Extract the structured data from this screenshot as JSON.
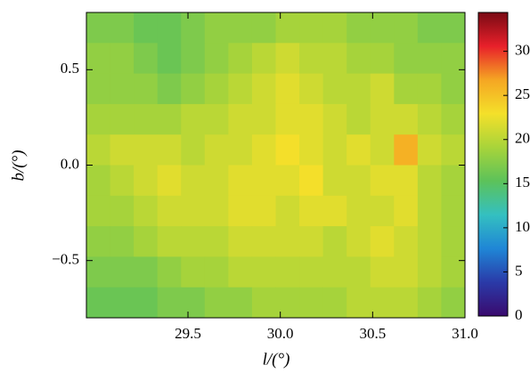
{
  "chart_data": {
    "type": "heatmap",
    "x_label": "l/(°)",
    "y_label": "b/(°)",
    "xlim": [
      28.95,
      31.0
    ],
    "ylim": [
      -0.8,
      0.8
    ],
    "xticks": [
      29.5,
      {
        "value": 30,
        "label": "30.0"
      },
      30.5,
      {
        "value": 31,
        "label": "31.0"
      }
    ],
    "yticks": [
      {
        "value": -0.5,
        "label": "−0.5"
      },
      {
        "value": 0,
        "label": "0.0"
      },
      0.5
    ],
    "clim": [
      0,
      34.4
    ],
    "cticks": [
      0,
      5,
      10,
      15,
      20,
      25,
      30
    ],
    "colormap": [
      "#3a0a6e",
      "#2a3aa8",
      "#1f86d6",
      "#34c0c0",
      "#5cc25a",
      "#a8d43a",
      "#f4e02a",
      "#f5a623",
      "#e8202a",
      "#7a0a14"
    ],
    "z": [
      [
        17,
        17,
        16,
        16,
        17,
        18,
        18,
        18,
        19,
        19,
        19,
        18,
        18,
        18,
        17,
        17
      ],
      [
        18,
        18,
        17,
        16,
        17,
        18,
        19,
        20,
        21,
        20,
        20,
        19,
        19,
        18,
        18,
        18
      ],
      [
        18,
        18,
        18,
        17,
        18,
        19,
        20,
        21,
        22,
        21,
        20,
        20,
        21,
        19,
        19,
        18
      ],
      [
        19,
        19,
        19,
        19,
        20,
        20,
        21,
        21,
        22,
        22,
        21,
        20,
        21,
        21,
        20,
        19
      ],
      [
        20,
        21,
        21,
        21,
        20,
        21,
        21,
        22,
        23,
        22,
        21,
        22,
        21,
        26,
        21,
        20
      ],
      [
        19,
        20,
        21,
        22,
        21,
        21,
        22,
        22,
        22,
        23,
        21,
        21,
        22,
        22,
        20,
        19
      ],
      [
        19,
        19,
        20,
        21,
        21,
        21,
        22,
        22,
        21,
        22,
        22,
        21,
        21,
        22,
        20,
        19
      ],
      [
        18,
        18,
        19,
        20,
        20,
        20,
        21,
        21,
        21,
        21,
        20,
        21,
        22,
        21,
        20,
        19
      ],
      [
        17,
        17,
        17,
        18,
        19,
        19,
        20,
        20,
        20,
        20,
        20,
        20,
        21,
        21,
        20,
        19
      ],
      [
        16,
        16,
        16,
        17,
        17,
        18,
        18,
        19,
        19,
        19,
        19,
        20,
        20,
        20,
        19,
        18
      ]
    ]
  }
}
